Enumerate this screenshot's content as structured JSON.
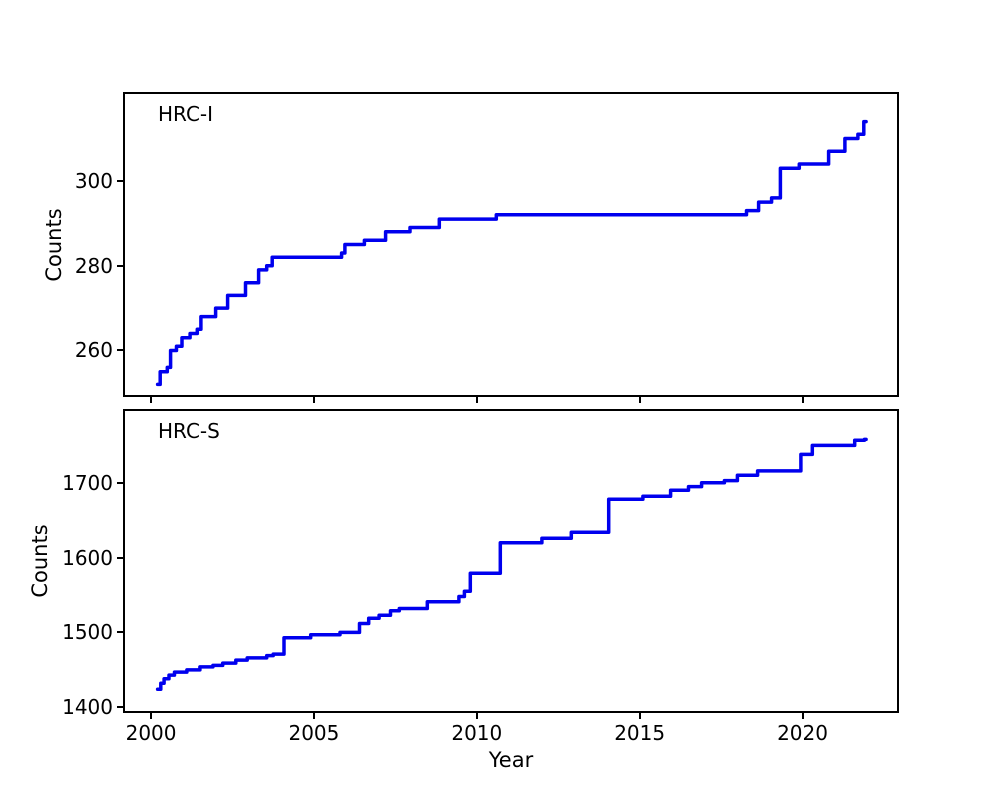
{
  "figure": {
    "background": "#ffffff",
    "line_color": "#0000ee",
    "line_width": 3.5,
    "spine_color": "#000000"
  },
  "chart_data": [
    {
      "type": "line",
      "drawstyle": "steps-post",
      "annotation": "HRC-I",
      "ylabel": "Counts",
      "xlabel": "",
      "grid": false,
      "legend": "none",
      "yticks": [
        260,
        280,
        300
      ],
      "xticks": [
        2000,
        2005,
        2010,
        2015,
        2020
      ],
      "xtick_labels": [],
      "ylim": [
        249.5,
        320.5
      ],
      "xlim": [
        1999.2,
        2022.9
      ],
      "line_end_x": 2021.95,
      "points": [
        [
          2000.2,
          252
        ],
        [
          2000.28,
          255
        ],
        [
          2000.5,
          256
        ],
        [
          2000.6,
          260
        ],
        [
          2000.78,
          261
        ],
        [
          2000.95,
          263
        ],
        [
          2001.2,
          264
        ],
        [
          2001.42,
          265
        ],
        [
          2001.53,
          268
        ],
        [
          2001.98,
          270
        ],
        [
          2002.35,
          273
        ],
        [
          2002.9,
          276
        ],
        [
          2003.3,
          279
        ],
        [
          2003.55,
          280
        ],
        [
          2003.72,
          282
        ],
        [
          2005.85,
          283
        ],
        [
          2005.95,
          285
        ],
        [
          2006.55,
          286
        ],
        [
          2007.2,
          288
        ],
        [
          2007.95,
          289
        ],
        [
          2008.85,
          291
        ],
        [
          2010.6,
          292
        ],
        [
          2018.28,
          293
        ],
        [
          2018.65,
          295
        ],
        [
          2019.05,
          296
        ],
        [
          2019.32,
          303
        ],
        [
          2019.9,
          304
        ],
        [
          2020.8,
          307
        ],
        [
          2021.3,
          310
        ],
        [
          2021.7,
          311
        ],
        [
          2021.88,
          314
        ]
      ]
    },
    {
      "type": "line",
      "drawstyle": "steps-post",
      "annotation": "HRC-S",
      "ylabel": "Counts",
      "xlabel": "Year",
      "grid": false,
      "legend": "none",
      "yticks": [
        1400,
        1500,
        1600,
        1700
      ],
      "xticks": [
        2000,
        2005,
        2010,
        2015,
        2020
      ],
      "xtick_labels": [
        "2000",
        "2005",
        "2010",
        "2015",
        "2020"
      ],
      "ylim": [
        1395,
        1796
      ],
      "xlim": [
        1999.2,
        2022.9
      ],
      "line_end_x": 2021.95,
      "points": [
        [
          2000.2,
          1424
        ],
        [
          2000.3,
          1432
        ],
        [
          2000.4,
          1438
        ],
        [
          2000.55,
          1443
        ],
        [
          2000.72,
          1447
        ],
        [
          2001.1,
          1450
        ],
        [
          2001.5,
          1454
        ],
        [
          2001.9,
          1456
        ],
        [
          2002.2,
          1459
        ],
        [
          2002.6,
          1463
        ],
        [
          2002.95,
          1466
        ],
        [
          2003.55,
          1469
        ],
        [
          2003.75,
          1471
        ],
        [
          2004.08,
          1493
        ],
        [
          2004.9,
          1497
        ],
        [
          2005.8,
          1500
        ],
        [
          2006.4,
          1512
        ],
        [
          2006.68,
          1519
        ],
        [
          2007.0,
          1523
        ],
        [
          2007.35,
          1529
        ],
        [
          2007.62,
          1532
        ],
        [
          2008.48,
          1541
        ],
        [
          2009.45,
          1548
        ],
        [
          2009.62,
          1555
        ],
        [
          2009.8,
          1579
        ],
        [
          2010.72,
          1620
        ],
        [
          2012.0,
          1626
        ],
        [
          2012.9,
          1634
        ],
        [
          2014.05,
          1678
        ],
        [
          2015.1,
          1682
        ],
        [
          2015.95,
          1690
        ],
        [
          2016.5,
          1695
        ],
        [
          2016.9,
          1700
        ],
        [
          2017.6,
          1703
        ],
        [
          2018.0,
          1710
        ],
        [
          2018.62,
          1716
        ],
        [
          2019.95,
          1738
        ],
        [
          2020.3,
          1750
        ],
        [
          2021.6,
          1757
        ],
        [
          2021.9,
          1758
        ]
      ]
    }
  ]
}
